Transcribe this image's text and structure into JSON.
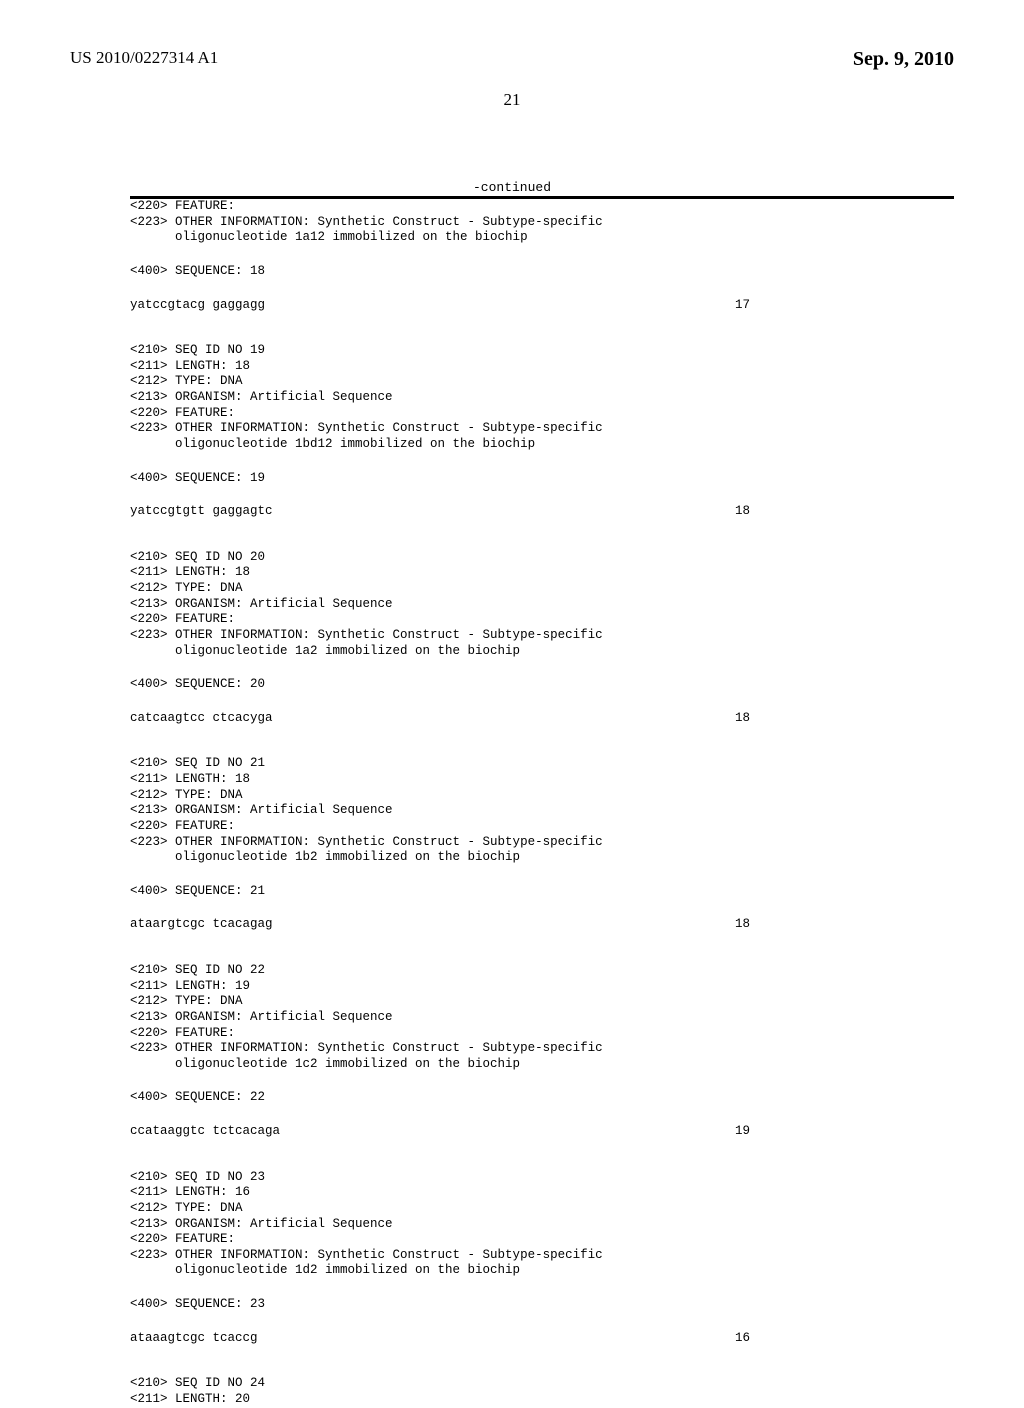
{
  "header": {
    "pub_number": "US 2010/0227314 A1",
    "date": "Sep. 9, 2010",
    "page_num": "21"
  },
  "continued_label": "-continued",
  "entries": [
    {
      "leading_tags": [
        "<220> FEATURE:",
        "<223> OTHER INFORMATION: Synthetic Construct - Subtype-specific",
        "      oligonucleotide 1a12 immobilized on the biochip"
      ],
      "seq_label": "<400> SEQUENCE: 18",
      "sequence": "yatccgtacg gaggagg",
      "length": "17"
    },
    {
      "leading_tags": [
        "<210> SEQ ID NO 19",
        "<211> LENGTH: 18",
        "<212> TYPE: DNA",
        "<213> ORGANISM: Artificial Sequence",
        "<220> FEATURE:",
        "<223> OTHER INFORMATION: Synthetic Construct - Subtype-specific",
        "      oligonucleotide 1bd12 immobilized on the biochip"
      ],
      "seq_label": "<400> SEQUENCE: 19",
      "sequence": "yatccgtgtt gaggagtc",
      "length": "18"
    },
    {
      "leading_tags": [
        "<210> SEQ ID NO 20",
        "<211> LENGTH: 18",
        "<212> TYPE: DNA",
        "<213> ORGANISM: Artificial Sequence",
        "<220> FEATURE:",
        "<223> OTHER INFORMATION: Synthetic Construct - Subtype-specific",
        "      oligonucleotide 1a2 immobilized on the biochip"
      ],
      "seq_label": "<400> SEQUENCE: 20",
      "sequence": "catcaagtcc ctcacyga",
      "length": "18"
    },
    {
      "leading_tags": [
        "<210> SEQ ID NO 21",
        "<211> LENGTH: 18",
        "<212> TYPE: DNA",
        "<213> ORGANISM: Artificial Sequence",
        "<220> FEATURE:",
        "<223> OTHER INFORMATION: Synthetic Construct - Subtype-specific",
        "      oligonucleotide 1b2 immobilized on the biochip"
      ],
      "seq_label": "<400> SEQUENCE: 21",
      "sequence": "ataargtcgc tcacagag",
      "length": "18"
    },
    {
      "leading_tags": [
        "<210> SEQ ID NO 22",
        "<211> LENGTH: 19",
        "<212> TYPE: DNA",
        "<213> ORGANISM: Artificial Sequence",
        "<220> FEATURE:",
        "<223> OTHER INFORMATION: Synthetic Construct - Subtype-specific",
        "      oligonucleotide 1c2 immobilized on the biochip"
      ],
      "seq_label": "<400> SEQUENCE: 22",
      "sequence": "ccataaggtc tctcacaga",
      "length": "19"
    },
    {
      "leading_tags": [
        "<210> SEQ ID NO 23",
        "<211> LENGTH: 16",
        "<212> TYPE: DNA",
        "<213> ORGANISM: Artificial Sequence",
        "<220> FEATURE:",
        "<223> OTHER INFORMATION: Synthetic Construct - Subtype-specific",
        "      oligonucleotide 1d2 immobilized on the biochip"
      ],
      "seq_label": "<400> SEQUENCE: 23",
      "sequence": "ataaagtcgc tcaccg",
      "length": "16"
    },
    {
      "leading_tags": [
        "<210> SEQ ID NO 24",
        "<211> LENGTH: 20"
      ],
      "seq_label": null,
      "sequence": null,
      "length": null
    }
  ]
}
